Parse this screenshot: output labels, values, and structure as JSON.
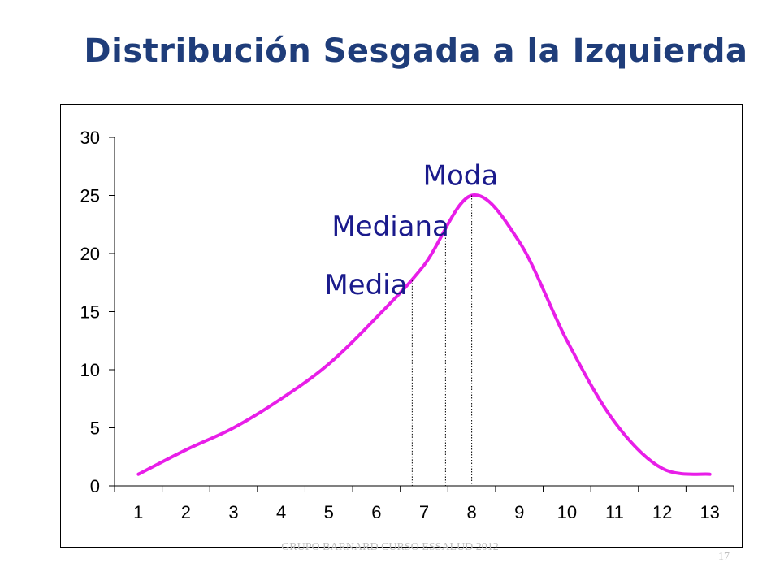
{
  "slide": {
    "title": "Distribución Sesgada a la Izquierda",
    "footer": "GRUPO BARNARD CURSO ESSALUD 2012",
    "page_number": "17"
  },
  "chart_data": {
    "type": "line",
    "title": "",
    "xlabel": "",
    "ylabel": "",
    "x": [
      1,
      2,
      3,
      4,
      5,
      6,
      7,
      8,
      9,
      10,
      11,
      12,
      13
    ],
    "series": [
      {
        "values": [
          1,
          3.1,
          5,
          7.5,
          10.5,
          14.5,
          19,
          25,
          21,
          12.5,
          5.5,
          1.5,
          1
        ],
        "color": "#e81ee8"
      }
    ],
    "ylim": [
      0,
      30
    ],
    "yticks": [
      0,
      5,
      10,
      15,
      20,
      25,
      30
    ],
    "grid": false,
    "legend": "none",
    "annotations": [
      {
        "label": "Moda",
        "x": 8.0,
        "y": 25,
        "color": "#1a1a8c"
      },
      {
        "label": "Mediana",
        "x": 7.45,
        "y": 22.1,
        "color": "#1a1a8c"
      },
      {
        "label": "Media",
        "x": 6.75,
        "y": 17.7,
        "color": "#1a1a8c"
      }
    ]
  }
}
